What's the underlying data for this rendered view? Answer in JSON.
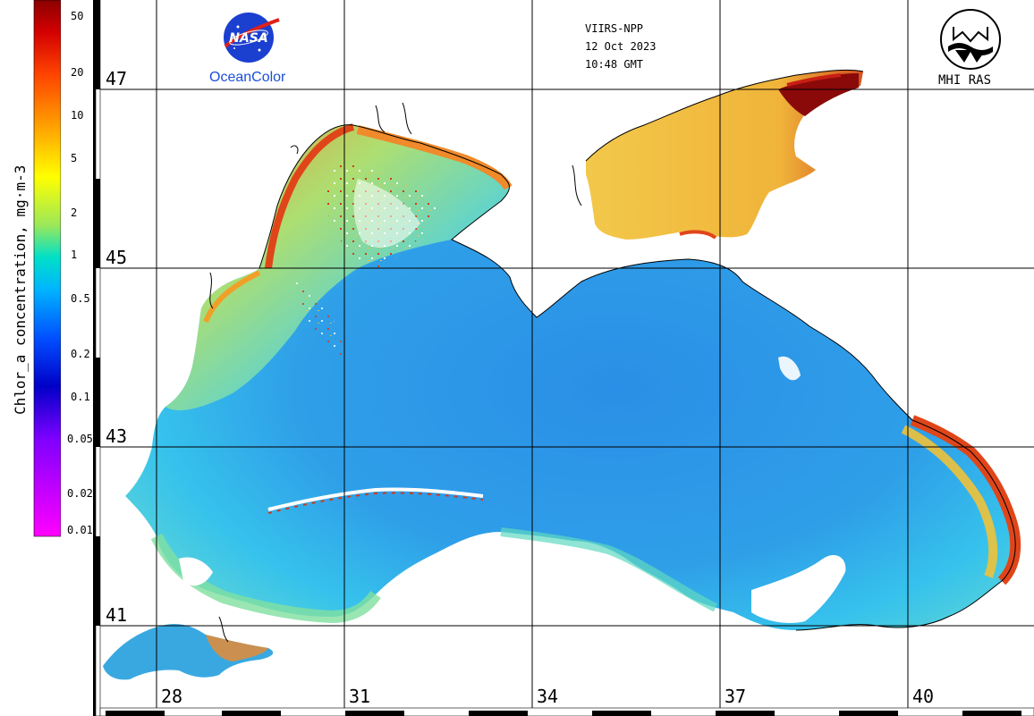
{
  "header": {
    "sensor": "VIIRS-NPP",
    "date": "12 Oct 2023",
    "time": "10:48 GMT"
  },
  "logos": {
    "nasa_text": "NASA",
    "left_caption": "OceanColor",
    "right_caption": "MHI RAS"
  },
  "colorbar": {
    "title": "Chlor_a concentration, mg·m-3",
    "ticks": [
      "50",
      "20",
      "10",
      "5",
      "2",
      "1",
      "0.5",
      "0.2",
      "0.1",
      "0.05",
      "0.02",
      "0.01"
    ]
  },
  "grid": {
    "latitudes": [
      "47",
      "45",
      "43",
      "41"
    ],
    "longitudes": [
      "28",
      "31",
      "34",
      "37",
      "40"
    ]
  },
  "colors": {
    "grid_line": "#000000",
    "open_sea": "#2f9fe8",
    "offshore": "#36c6ea",
    "shelf": "#7fe0a0",
    "coastal": "#f0c23a",
    "bloom": "#e0451a",
    "extreme": "#8a0a0a",
    "cloud": "#ffffff"
  }
}
